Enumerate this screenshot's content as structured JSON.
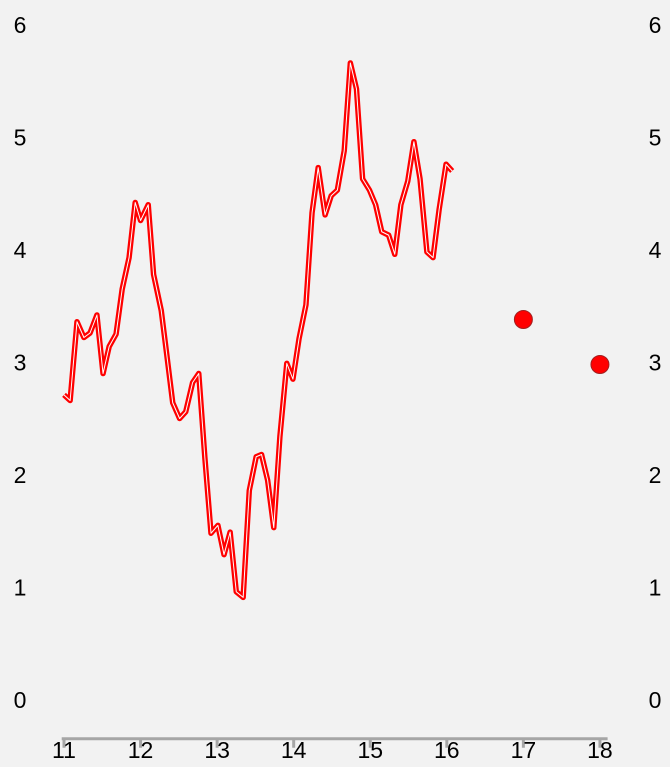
{
  "chart_data": {
    "type": "line",
    "series": [
      {
        "color": "#ff0000",
        "x": [
          11.0,
          11.08,
          11.17,
          11.26,
          11.34,
          11.43,
          11.51,
          11.59,
          11.68,
          11.76,
          11.85,
          11.93,
          12.0,
          12.1,
          12.17,
          12.27,
          12.34,
          12.42,
          12.51,
          12.59,
          12.68,
          12.76,
          12.84,
          12.92,
          13.01,
          13.09,
          13.17,
          13.25,
          13.34,
          13.42,
          13.51,
          13.58,
          13.66,
          13.74,
          13.82,
          13.91,
          13.99,
          14.07,
          14.16,
          14.24,
          14.32,
          14.41,
          14.49,
          14.57,
          14.66,
          14.74,
          14.82,
          14.9,
          14.99,
          15.07,
          15.15,
          15.24,
          15.32,
          15.4,
          15.49,
          15.57,
          15.65,
          15.74,
          15.82,
          15.9,
          15.99,
          16.07
        ],
        "values": [
          2.73,
          2.68,
          3.38,
          3.24,
          3.28,
          3.44,
          2.92,
          3.16,
          3.27,
          3.67,
          3.95,
          4.44,
          4.28,
          4.42,
          3.8,
          3.48,
          3.1,
          2.66,
          2.52,
          2.58,
          2.84,
          2.92,
          2.17,
          1.5,
          1.57,
          1.31,
          1.51,
          0.98,
          0.93,
          1.88,
          2.18,
          2.2,
          1.97,
          1.55,
          2.36,
          3.01,
          2.87,
          3.23,
          3.53,
          4.35,
          4.75,
          4.33,
          4.5,
          4.55,
          4.9,
          5.68,
          5.45,
          4.65,
          4.55,
          4.42,
          4.18,
          4.15,
          3.98,
          4.42,
          4.63,
          4.98,
          4.65,
          4.0,
          3.95,
          4.38,
          4.78,
          4.72
        ]
      },
      {
        "color": "#ff0000",
        "type": "scatter",
        "x": [
          17,
          18
        ],
        "values": [
          3.4,
          3.0
        ]
      }
    ],
    "xlim": [
      10.97,
      18.1
    ],
    "xticks": [
      11,
      12,
      13,
      14,
      15,
      16,
      17,
      18
    ],
    "ylim": [
      -0.3,
      6
    ],
    "yticks": [
      0,
      1,
      2,
      3,
      4,
      5,
      6
    ],
    "y2lim": [
      -0.3,
      6
    ],
    "y2ticks": [
      0,
      1,
      2,
      3,
      4,
      5,
      6
    ]
  }
}
